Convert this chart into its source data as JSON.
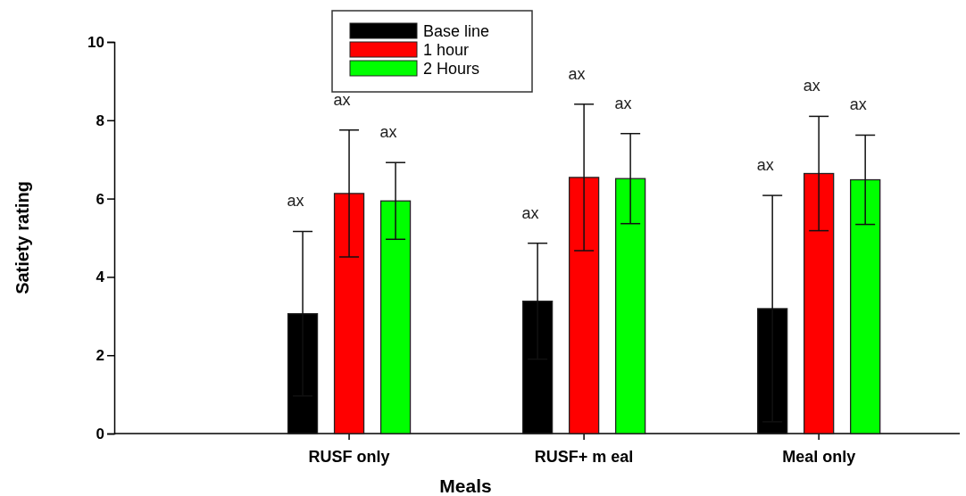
{
  "chart_data": {
    "type": "bar",
    "xlabel": "Meals",
    "ylabel": "Satiety rating",
    "categories": [
      "RUSF only",
      "RUSF+ m eal",
      "Meal only"
    ],
    "series": [
      {
        "name": "Base line",
        "color": "#000000",
        "values": [
          3.06,
          3.38,
          3.19
        ],
        "errors": [
          2.1,
          1.48,
          2.89
        ]
      },
      {
        "name": "1 hour",
        "color": "#ff0000",
        "values": [
          6.13,
          6.54,
          6.64
        ],
        "errors": [
          1.62,
          1.87,
          1.46
        ]
      },
      {
        "name": "2 Hours",
        "color": "#00ff00",
        "values": [
          5.94,
          6.51,
          6.48
        ],
        "errors": [
          0.98,
          1.15,
          1.14
        ]
      }
    ],
    "ylim": [
      0,
      10
    ],
    "yticks": [
      0,
      2,
      4,
      6,
      8,
      10
    ],
    "legend": "top",
    "annotations": [
      "ax",
      "ax",
      "ax",
      "ax",
      "ax",
      "ax",
      "ax",
      "ax",
      "ax"
    ]
  }
}
